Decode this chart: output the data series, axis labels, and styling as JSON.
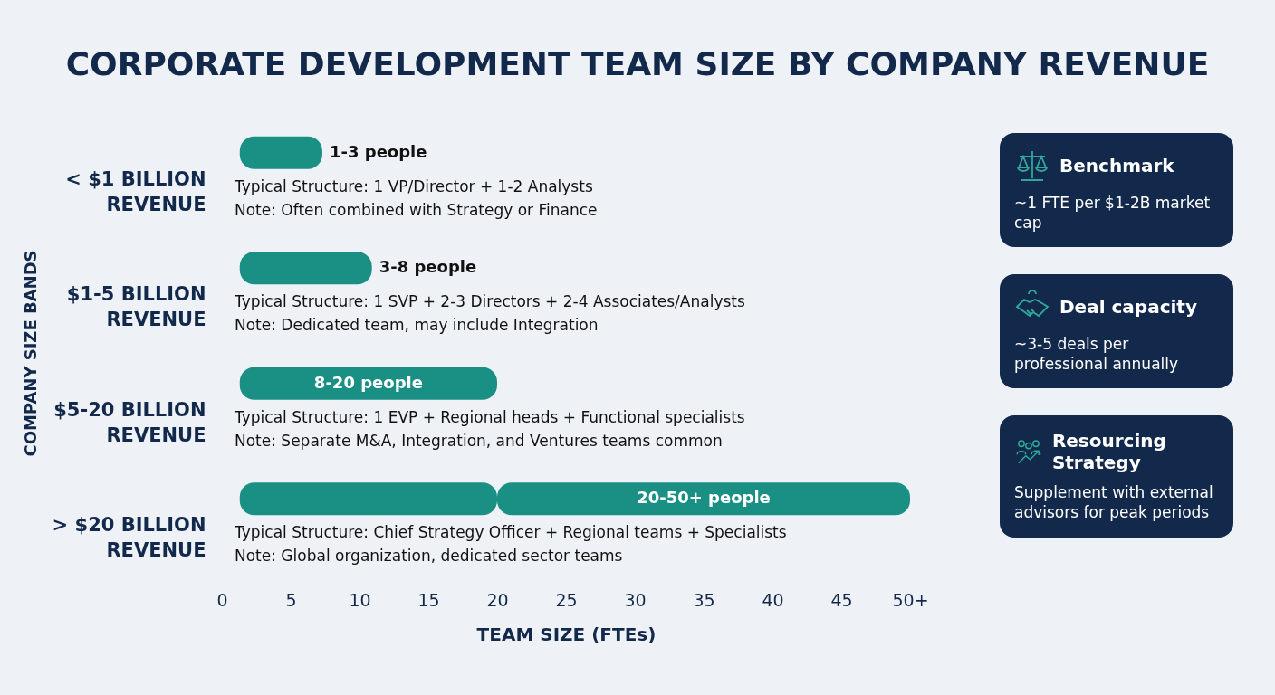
{
  "chart_data": {
    "type": "bar",
    "orientation": "horizontal",
    "title": "CORPORATE DEVELOPMENT TEAM SIZE BY COMPANY REVENUE",
    "xlabel": "TEAM SIZE (FTEs)",
    "ylabel": "COMPANY SIZE BANDS",
    "categories": [
      "< $1 BILLION REVENUE",
      "$1-5 BILLION REVENUE",
      "$5-20 BILLION REVENUE",
      "> $20 BILLION REVENUE"
    ],
    "series": [
      {
        "color": "#1a9085",
        "base": [
          1.3,
          1.3,
          1.3,
          1.3
        ],
        "values": [
          6,
          9.6,
          18.7,
          18.7
        ],
        "value_labels": [
          "1-3 people",
          "3-8 people",
          "8-20 people",
          null
        ]
      },
      {
        "color": "#1a9085",
        "base": [
          null,
          null,
          null,
          20
        ],
        "values": [
          null,
          null,
          null,
          30
        ],
        "value_labels": [
          null,
          null,
          null,
          "20-50+ people"
        ]
      }
    ],
    "xlim": [
      0,
      50
    ],
    "xticks": [
      0,
      5,
      10,
      15,
      20,
      25,
      30,
      35,
      40,
      45,
      {
        "value": 50,
        "label": "50+"
      }
    ],
    "grid": false,
    "annotations": [
      "Typical Structure: 1 VP/Director + 1-2 Analysts",
      "Note: Often combined with Strategy or Finance",
      "Typical Structure: 1 SVP + 2-3 Directors + 2-4 Associates/Analysts",
      "Note: Dedicated team, may include Integration",
      "Typical Structure: 1 EVP + Regional heads + Functional specialists",
      "Note: Separate M&A, Integration, and Ventures teams common",
      "Typical Structure: Chief Strategy Officer + Regional teams + Specialists",
      "Note: Global organization, dedicated sector teams",
      "Benchmark",
      "~1 FTE per $1-2B market cap",
      "Deal capacity",
      "~3-5 deals per professional annually",
      "Resourcing Strategy",
      "Supplement with external advisors for peak periods"
    ]
  }
}
